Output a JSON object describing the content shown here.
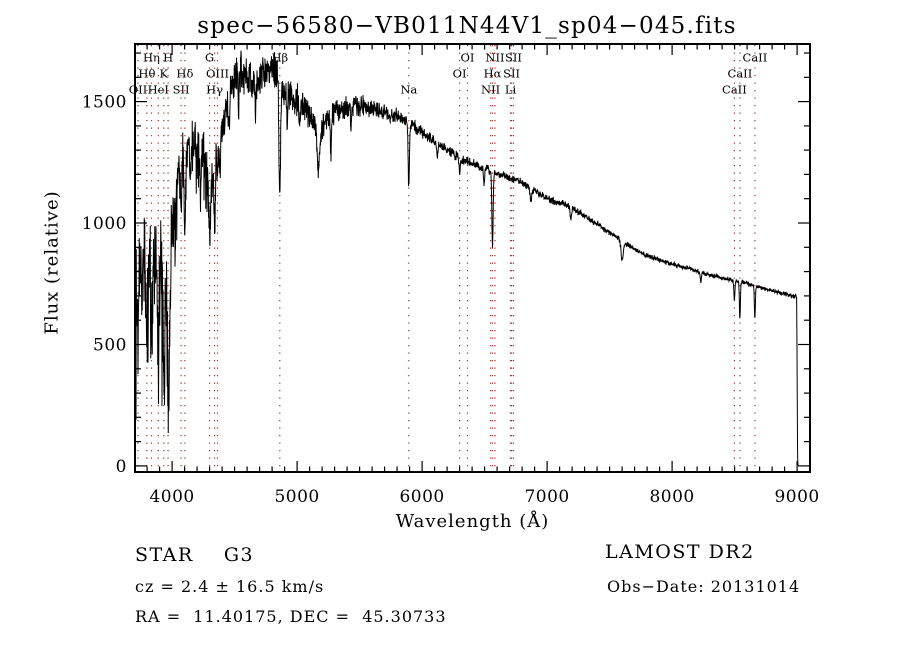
{
  "chart_data": {
    "type": "line",
    "title": "spec−56580−VB011N44V1_sp04−045.fits",
    "xlabel": "Wavelength (Å)",
    "ylabel": "Flux (relative)",
    "x_ticks": [
      4000,
      5000,
      6000,
      7000,
      8000,
      9000
    ],
    "y_ticks": [
      0,
      500,
      1000,
      1500
    ],
    "x_minor_step": 100,
    "y_minor_step": 100,
    "x_range": [
      3703,
      9103
    ],
    "y_range": [
      -25,
      1737
    ],
    "grid": false,
    "line_color": "#000000",
    "marker_line_color": "#a03430",
    "spectral_line_markers": [
      {
        "label": "Hη",
        "wavelength": 3835,
        "row": 1
      },
      {
        "label": "H",
        "wavelength": 3968,
        "row": 1
      },
      {
        "label": "G",
        "wavelength": 4300,
        "row": 1
      },
      {
        "label": "Hβ",
        "wavelength": 4861,
        "row": 1
      },
      {
        "label": "OI",
        "wavelength": 6363,
        "row": 1
      },
      {
        "label": "NII",
        "wavelength": 6583,
        "row": 1
      },
      {
        "label": "SII",
        "wavelength": 6731,
        "row": 1
      },
      {
        "label": "CaII",
        "wavelength": 8662,
        "row": 1
      },
      {
        "label": "Hθ",
        "wavelength": 3798,
        "row": 2
      },
      {
        "label": "K",
        "wavelength": 3933,
        "row": 2
      },
      {
        "label": "Hδ",
        "wavelength": 4102,
        "row": 2
      },
      {
        "label": "OIII",
        "wavelength": 4363,
        "row": 2
      },
      {
        "label": "OI",
        "wavelength": 6300,
        "row": 2
      },
      {
        "label": "Hα",
        "wavelength": 6563,
        "row": 2
      },
      {
        "label": "SII",
        "wavelength": 6716,
        "row": 2
      },
      {
        "label": "CaII",
        "wavelength": 8542,
        "row": 2
      },
      {
        "label": "OII",
        "wavelength": 3727,
        "row": 3
      },
      {
        "label": "HeI",
        "wavelength": 3889,
        "row": 3
      },
      {
        "label": "SII",
        "wavelength": 4072,
        "row": 3
      },
      {
        "label": "Hγ",
        "wavelength": 4340,
        "row": 3
      },
      {
        "label": "Na",
        "wavelength": 5893,
        "row": 3
      },
      {
        "label": "NII",
        "wavelength": 6548,
        "row": 3
      },
      {
        "label": "Li",
        "wavelength": 6707,
        "row": 3
      },
      {
        "label": "CaII",
        "wavelength": 8498,
        "row": 3
      }
    ],
    "continuum_points": [
      [
        3705,
        650
      ],
      [
        3725,
        780
      ],
      [
        3745,
        820
      ],
      [
        3765,
        860
      ],
      [
        3785,
        760
      ],
      [
        3810,
        830
      ],
      [
        3835,
        900
      ],
      [
        3860,
        830
      ],
      [
        3885,
        820
      ],
      [
        3910,
        860
      ],
      [
        3940,
        700
      ],
      [
        3975,
        720
      ],
      [
        4005,
        1010
      ],
      [
        4040,
        1150
      ],
      [
        4080,
        1260
      ],
      [
        4120,
        1310
      ],
      [
        4170,
        1340
      ],
      [
        4220,
        1310
      ],
      [
        4270,
        1270
      ],
      [
        4315,
        1190
      ],
      [
        4360,
        1280
      ],
      [
        4420,
        1450
      ],
      [
        4470,
        1560
      ],
      [
        4530,
        1630
      ],
      [
        4590,
        1600
      ],
      [
        4650,
        1570
      ],
      [
        4710,
        1600
      ],
      [
        4770,
        1630
      ],
      [
        4830,
        1620
      ],
      [
        4890,
        1550
      ],
      [
        4950,
        1530
      ],
      [
        5010,
        1500
      ],
      [
        5070,
        1470
      ],
      [
        5130,
        1420
      ],
      [
        5190,
        1380
      ],
      [
        5250,
        1440
      ],
      [
        5310,
        1460
      ],
      [
        5380,
        1470
      ],
      [
        5450,
        1480
      ],
      [
        5520,
        1485
      ],
      [
        5590,
        1475
      ],
      [
        5660,
        1465
      ],
      [
        5730,
        1450
      ],
      [
        5800,
        1440
      ],
      [
        5870,
        1420
      ],
      [
        5940,
        1395
      ],
      [
        6010,
        1370
      ],
      [
        6080,
        1345
      ],
      [
        6150,
        1320
      ],
      [
        6220,
        1295
      ],
      [
        6290,
        1270
      ],
      [
        6360,
        1255
      ],
      [
        6430,
        1240
      ],
      [
        6500,
        1225
      ],
      [
        6570,
        1210
      ],
      [
        6640,
        1195
      ],
      [
        6710,
        1185
      ],
      [
        6780,
        1170
      ],
      [
        6850,
        1150
      ],
      [
        6920,
        1125
      ],
      [
        6990,
        1105
      ],
      [
        7060,
        1090
      ],
      [
        7130,
        1080
      ],
      [
        7200,
        1060
      ],
      [
        7270,
        1040
      ],
      [
        7340,
        1015
      ],
      [
        7410,
        995
      ],
      [
        7480,
        965
      ],
      [
        7550,
        945
      ],
      [
        7620,
        920
      ],
      [
        7690,
        895
      ],
      [
        7760,
        875
      ],
      [
        7830,
        860
      ],
      [
        7900,
        848
      ],
      [
        7970,
        836
      ],
      [
        8040,
        825
      ],
      [
        8110,
        815
      ],
      [
        8180,
        805
      ],
      [
        8250,
        795
      ],
      [
        8320,
        785
      ],
      [
        8390,
        775
      ],
      [
        8460,
        768
      ],
      [
        8530,
        760
      ],
      [
        8600,
        752
      ],
      [
        8670,
        742
      ],
      [
        8740,
        730
      ],
      [
        8810,
        720
      ],
      [
        8880,
        710
      ],
      [
        8940,
        703
      ],
      [
        8995,
        697
      ]
    ],
    "absorption_features": [
      [
        3727,
        280,
        5
      ],
      [
        3760,
        200,
        4
      ],
      [
        3798,
        300,
        5
      ],
      [
        3835,
        340,
        5
      ],
      [
        3889,
        380,
        6
      ],
      [
        3933,
        430,
        7
      ],
      [
        3969,
        430,
        7
      ],
      [
        4026,
        160,
        4
      ],
      [
        4072,
        160,
        4
      ],
      [
        4102,
        310,
        6
      ],
      [
        4144,
        150,
        4
      ],
      [
        4227,
        170,
        4
      ],
      [
        4300,
        260,
        9
      ],
      [
        4340,
        290,
        5
      ],
      [
        4363,
        120,
        4
      ],
      [
        4383,
        170,
        4
      ],
      [
        4455,
        140,
        4
      ],
      [
        4531,
        150,
        4
      ],
      [
        4668,
        140,
        4
      ],
      [
        4861,
        500,
        6
      ],
      [
        4920,
        130,
        4
      ],
      [
        5018,
        130,
        4
      ],
      [
        5170,
        200,
        9
      ],
      [
        5270,
        150,
        5
      ],
      [
        5430,
        80,
        4
      ],
      [
        5893,
        260,
        5
      ],
      [
        6122,
        60,
        4
      ],
      [
        6300,
        70,
        4
      ],
      [
        6495,
        70,
        4
      ],
      [
        6563,
        310,
        5
      ],
      [
        6870,
        60,
        6
      ],
      [
        7190,
        50,
        5
      ],
      [
        7600,
        80,
        9
      ],
      [
        8230,
        40,
        5
      ],
      [
        8498,
        85,
        4
      ],
      [
        8542,
        155,
        4
      ],
      [
        8662,
        135,
        4
      ]
    ],
    "noise_profile": [
      [
        3705,
        300
      ],
      [
        3960,
        300
      ],
      [
        4010,
        190
      ],
      [
        4110,
        140
      ],
      [
        4250,
        120
      ],
      [
        4430,
        105
      ],
      [
        4700,
        92
      ],
      [
        4950,
        82
      ],
      [
        5150,
        70
      ],
      [
        5400,
        55
      ],
      [
        5650,
        42
      ],
      [
        5900,
        32
      ],
      [
        6150,
        26
      ],
      [
        6400,
        22
      ],
      [
        6700,
        20
      ],
      [
        7000,
        17
      ],
      [
        7300,
        15
      ],
      [
        7600,
        13
      ],
      [
        8000,
        12
      ],
      [
        8400,
        11
      ],
      [
        8700,
        10
      ],
      [
        8995,
        10
      ]
    ],
    "sample_step": 2,
    "noise_seed": 20131014,
    "red_cutoff_tail": [
      [
        8996,
        690
      ],
      [
        8999,
        480
      ],
      [
        9001,
        280
      ],
      [
        9003,
        100
      ],
      [
        9005,
        15
      ],
      [
        9008,
        3
      ],
      [
        9012,
        3
      ]
    ]
  },
  "annotations": {
    "object_class": "STAR    G3",
    "cz_line": "cz = 2.4 ± 16.5 km/s",
    "radec_line": "RA =  11.40175, DEC =  45.30733",
    "survey": "LAMOST DR2",
    "obsdate_line": "Obs−Date: 20131014"
  }
}
